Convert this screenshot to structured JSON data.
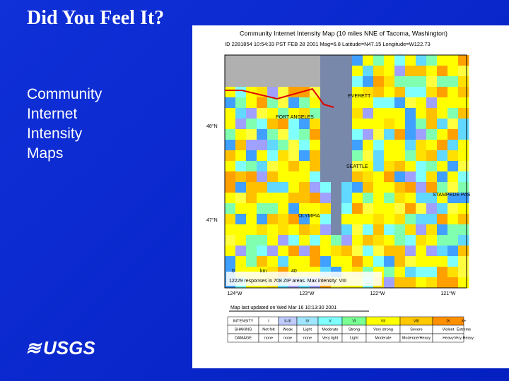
{
  "slide": {
    "title": "Did You Feel It?",
    "body": [
      "Community",
      "Internet",
      "Intensity",
      "Maps"
    ],
    "logo": "USGS"
  },
  "map": {
    "title": "Community Internet Intensity Map (10 miles NNE of Tacoma, Washington)",
    "subtitle": "ID 2281854 10:54:33 PST FEB 28 2001 Mag=6.8 Latitude=N47.15 Longitude=W122.73",
    "lat_labels": [
      "48°N",
      "47°N"
    ],
    "lon_labels": [
      "124°W",
      "123°W",
      "122°W",
      "121°W"
    ],
    "places": [
      "PORT ANGELES",
      "EVERETT",
      "STAMPEDE PAS",
      "SEATTLE",
      "OLYMPIA"
    ],
    "scale_labels": [
      "0",
      "km",
      "40"
    ],
    "responses": "12229 responses in 708 ZIP areas. Max intensity: VIII",
    "updated": "Map last updated on Wed Mar 16 10:13:30 2001"
  },
  "legend": {
    "rows": [
      [
        "INTENSITY",
        "I",
        "II-III",
        "IV",
        "V",
        "VI",
        "VII",
        "VIII",
        "IX",
        "X+"
      ],
      [
        "SHAKING",
        "Not felt",
        "Weak",
        "Light",
        "Moderate",
        "Strong",
        "Very strong",
        "Severe",
        "Violent",
        "Extreme"
      ],
      [
        "DAMAGE",
        "none",
        "none",
        "none",
        "Very light",
        "Light",
        "Moderate",
        "Moderate/Heavy",
        "Heavy",
        "Very Heavy"
      ]
    ]
  }
}
